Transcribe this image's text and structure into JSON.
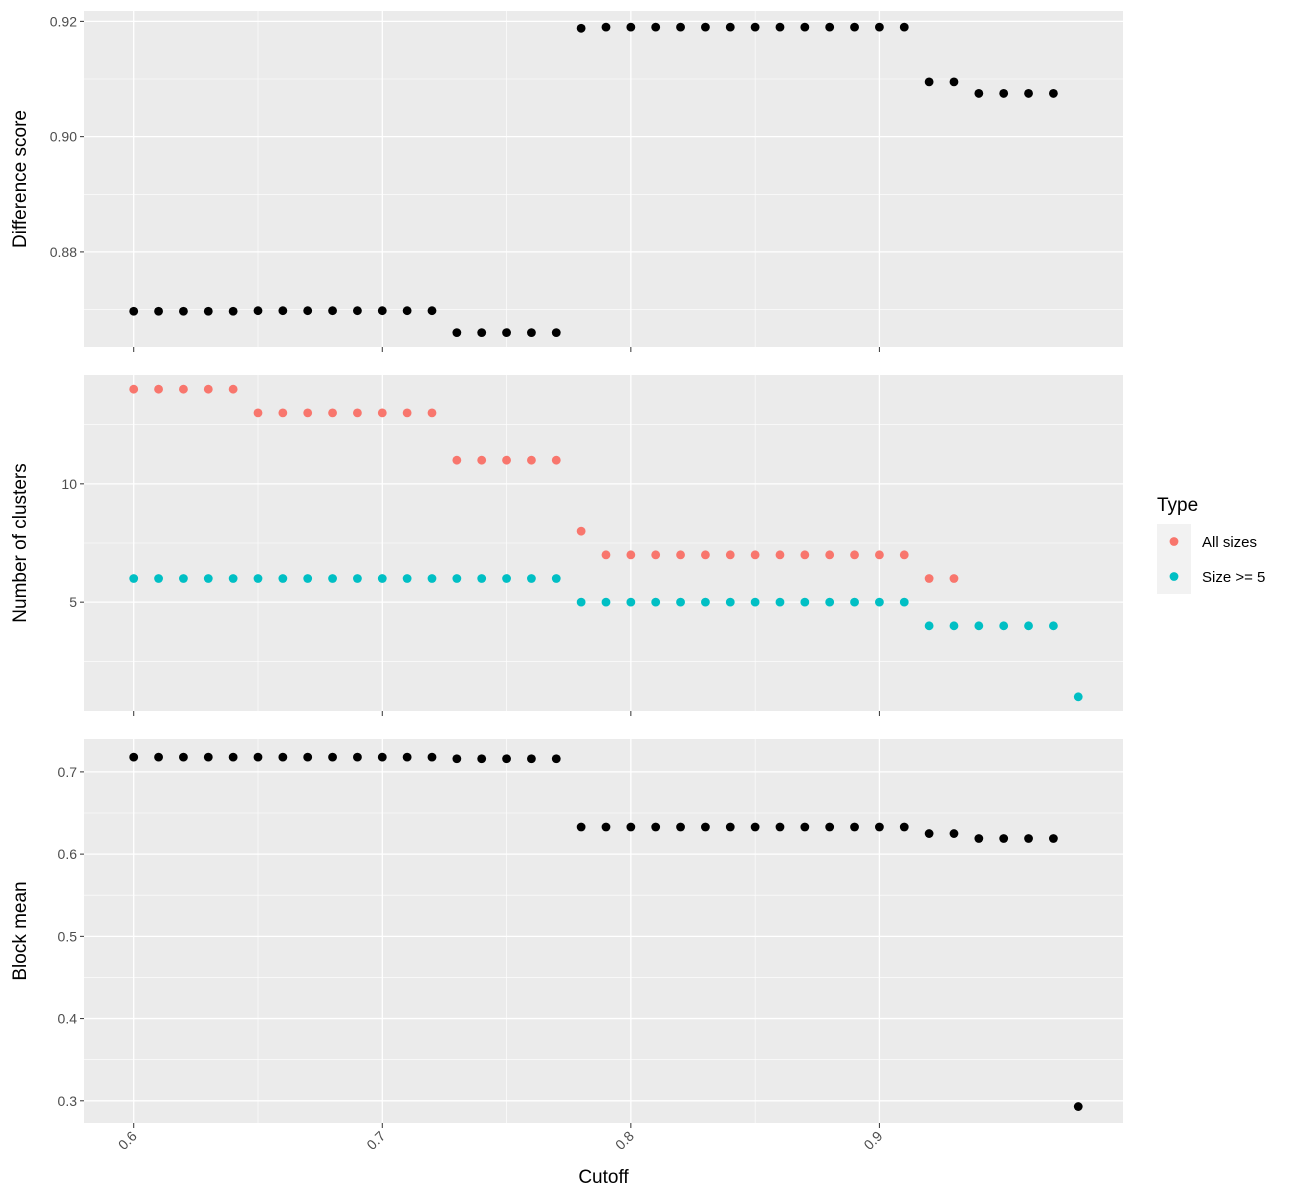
{
  "chart_data": {
    "type": "scatter",
    "xlabel": "Cutoff",
    "x_ticks": [
      0.6,
      0.7,
      0.8,
      0.9
    ],
    "x_tick_labels": [
      "0.6",
      "0.7",
      "0.8",
      "0.9"
    ],
    "xlim": [
      0.58,
      0.998
    ],
    "panels": [
      {
        "ylabel": "Difference score",
        "ylim": [
          0.8635,
          0.9218
        ],
        "y_ticks": [
          0.88,
          0.9,
          0.92
        ],
        "y_tick_labels": [
          "0.88",
          "0.90",
          "0.92"
        ],
        "y_minor": [
          0.87,
          0.89,
          0.91
        ],
        "series": [
          {
            "color": "#000000",
            "x": [
              0.6,
              0.61,
              0.62,
              0.63,
              0.64,
              0.65,
              0.66,
              0.67,
              0.68,
              0.69,
              0.7,
              0.71,
              0.72,
              0.73,
              0.74,
              0.75,
              0.76,
              0.77,
              0.78,
              0.79,
              0.8,
              0.81,
              0.82,
              0.83,
              0.84,
              0.85,
              0.86,
              0.87,
              0.88,
              0.89,
              0.9,
              0.91,
              0.92,
              0.93,
              0.94,
              0.95,
              0.96,
              0.97
            ],
            "y": [
              0.8697,
              0.8697,
              0.8697,
              0.8697,
              0.8697,
              0.8698,
              0.8698,
              0.8698,
              0.8698,
              0.8698,
              0.8698,
              0.8698,
              0.8698,
              0.866,
              0.866,
              0.866,
              0.866,
              0.866,
              0.9188,
              0.919,
              0.919,
              0.919,
              0.919,
              0.919,
              0.919,
              0.919,
              0.919,
              0.919,
              0.919,
              0.919,
              0.919,
              0.919,
              0.9095,
              0.9095,
              0.9075,
              0.9075,
              0.9075,
              0.9075
            ]
          }
        ]
      },
      {
        "ylabel": "Number of clusters",
        "ylim": [
          0.4,
          14.6
        ],
        "y_ticks": [
          5,
          10
        ],
        "y_tick_labels": [
          "5",
          "10"
        ],
        "y_minor": [
          2.5,
          7.5,
          12.5
        ],
        "series": [
          {
            "name": "All sizes",
            "color": "#F8766D",
            "x": [
              0.6,
              0.61,
              0.62,
              0.63,
              0.64,
              0.65,
              0.66,
              0.67,
              0.68,
              0.69,
              0.7,
              0.71,
              0.72,
              0.73,
              0.74,
              0.75,
              0.76,
              0.77,
              0.78,
              0.79,
              0.8,
              0.81,
              0.82,
              0.83,
              0.84,
              0.85,
              0.86,
              0.87,
              0.88,
              0.89,
              0.9,
              0.91,
              0.92,
              0.93
            ],
            "y": [
              14,
              14,
              14,
              14,
              14,
              13,
              13,
              13,
              13,
              13,
              13,
              13,
              13,
              11,
              11,
              11,
              11,
              11,
              8,
              7,
              7,
              7,
              7,
              7,
              7,
              7,
              7,
              7,
              7,
              7,
              7,
              7,
              6,
              6
            ]
          },
          {
            "name": "Size >= 5",
            "color": "#00BFC4",
            "x": [
              0.6,
              0.61,
              0.62,
              0.63,
              0.64,
              0.65,
              0.66,
              0.67,
              0.68,
              0.69,
              0.7,
              0.71,
              0.72,
              0.73,
              0.74,
              0.75,
              0.76,
              0.77,
              0.78,
              0.79,
              0.8,
              0.81,
              0.82,
              0.83,
              0.84,
              0.85,
              0.86,
              0.87,
              0.88,
              0.89,
              0.9,
              0.91,
              0.92,
              0.93,
              0.94,
              0.95,
              0.96,
              0.97,
              0.98
            ],
            "y": [
              6,
              6,
              6,
              6,
              6,
              6,
              6,
              6,
              6,
              6,
              6,
              6,
              6,
              6,
              6,
              6,
              6,
              6,
              5,
              5,
              5,
              5,
              5,
              5,
              5,
              5,
              5,
              5,
              5,
              5,
              5,
              5,
              4,
              4,
              4,
              4,
              4,
              4,
              1
            ]
          }
        ]
      },
      {
        "ylabel": "Block mean",
        "ylim": [
          0.273,
          0.74
        ],
        "y_ticks": [
          0.3,
          0.4,
          0.5,
          0.6,
          0.7
        ],
        "y_tick_labels": [
          "0.3",
          "0.4",
          "0.5",
          "0.6",
          "0.7"
        ],
        "y_minor": [
          0.35,
          0.45,
          0.55,
          0.65
        ],
        "series": [
          {
            "color": "#000000",
            "x": [
              0.6,
              0.61,
              0.62,
              0.63,
              0.64,
              0.65,
              0.66,
              0.67,
              0.68,
              0.69,
              0.7,
              0.71,
              0.72,
              0.73,
              0.74,
              0.75,
              0.76,
              0.77,
              0.78,
              0.79,
              0.8,
              0.81,
              0.82,
              0.83,
              0.84,
              0.85,
              0.86,
              0.87,
              0.88,
              0.89,
              0.9,
              0.91,
              0.92,
              0.93,
              0.94,
              0.95,
              0.96,
              0.97,
              0.98
            ],
            "y": [
              0.718,
              0.718,
              0.718,
              0.718,
              0.718,
              0.718,
              0.718,
              0.718,
              0.718,
              0.718,
              0.718,
              0.718,
              0.718,
              0.716,
              0.716,
              0.716,
              0.716,
              0.716,
              0.633,
              0.633,
              0.633,
              0.633,
              0.633,
              0.633,
              0.633,
              0.633,
              0.633,
              0.633,
              0.633,
              0.633,
              0.633,
              0.633,
              0.625,
              0.625,
              0.619,
              0.619,
              0.619,
              0.619,
              0.293
            ]
          }
        ]
      }
    ],
    "legend": {
      "title": "Type",
      "position": "right",
      "entries": [
        {
          "label": "All sizes",
          "color": "#F8766D"
        },
        {
          "label": "Size >= 5",
          "color": "#00BFC4"
        }
      ]
    }
  }
}
